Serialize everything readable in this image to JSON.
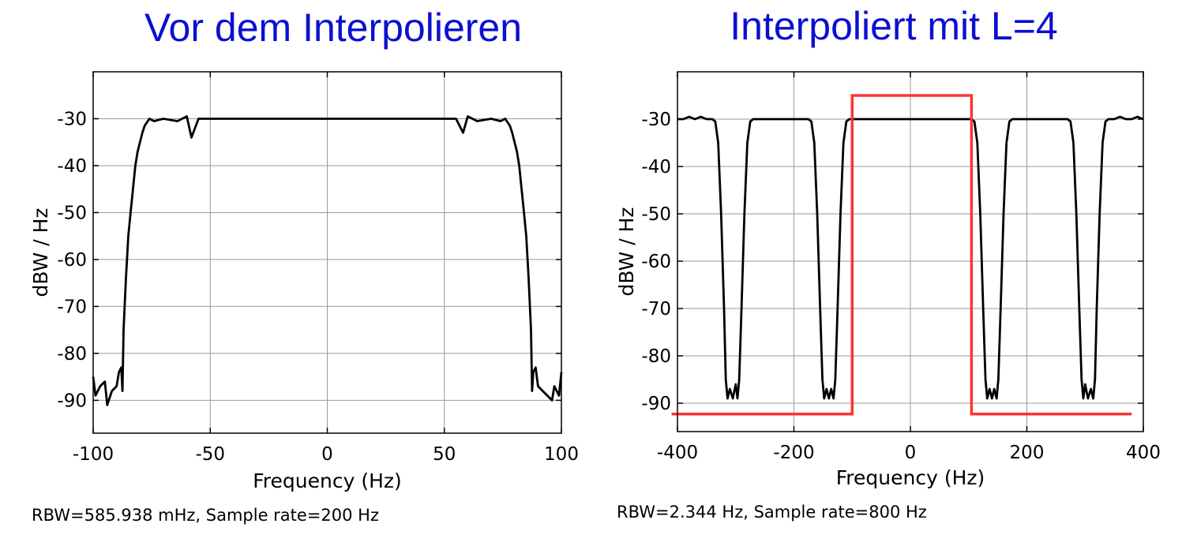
{
  "chart_data": [
    {
      "type": "line",
      "title": "Vor dem Interpolieren",
      "xlabel": "Frequency (Hz)",
      "ylabel": "dBW / Hz",
      "xlim": [
        -100,
        100
      ],
      "ylim": [
        -97,
        -20
      ],
      "xticks": [
        -100,
        -50,
        0,
        50,
        100
      ],
      "yticks": [
        -30,
        -40,
        -50,
        -60,
        -70,
        -80,
        -90
      ],
      "xtick_labels": [
        "-100",
        "-50",
        "0",
        "50",
        "100"
      ],
      "ytick_labels": [
        "-30",
        "-40",
        "-50",
        "-60",
        "-70",
        "-80",
        "-90"
      ],
      "grid": true,
      "footer": "RBW=585.938 mHz, Sample rate=200 Hz",
      "series": [
        {
          "color": "#000000",
          "points": [
            [
              -100,
              -85
            ],
            [
              -99,
              -89
            ],
            [
              -97,
              -87
            ],
            [
              -95,
              -86
            ],
            [
              -94,
              -91
            ],
            [
              -92,
              -88
            ],
            [
              -90,
              -87
            ],
            [
              -89,
              -84
            ],
            [
              -88,
              -83
            ],
            [
              -87.5,
              -88
            ],
            [
              -87,
              -75
            ],
            [
              -86,
              -64
            ],
            [
              -85,
              -55
            ],
            [
              -84,
              -50
            ],
            [
              -83,
              -45
            ],
            [
              -82,
              -40
            ],
            [
              -81,
              -37
            ],
            [
              -80,
              -35
            ],
            [
              -79,
              -33
            ],
            [
              -78,
              -31.5
            ],
            [
              -76,
              -30
            ],
            [
              -74,
              -30.5
            ],
            [
              -70,
              -30
            ],
            [
              -64,
              -30.5
            ],
            [
              -60,
              -29.5
            ],
            [
              -58,
              -34
            ],
            [
              -55,
              -30
            ],
            [
              -45,
              -30
            ],
            [
              -30,
              -30
            ],
            [
              -15,
              -30
            ],
            [
              0,
              -30
            ],
            [
              15,
              -30
            ],
            [
              30,
              -30
            ],
            [
              45,
              -30
            ],
            [
              55,
              -30
            ],
            [
              58,
              -33
            ],
            [
              60,
              -29.5
            ],
            [
              64,
              -30.5
            ],
            [
              70,
              -30
            ],
            [
              74,
              -30.5
            ],
            [
              76,
              -30
            ],
            [
              78,
              -31.5
            ],
            [
              79,
              -33
            ],
            [
              80,
              -35
            ],
            [
              81,
              -37
            ],
            [
              82,
              -40
            ],
            [
              83,
              -45
            ],
            [
              84,
              -50
            ],
            [
              85,
              -55
            ],
            [
              86,
              -64
            ],
            [
              87,
              -75
            ],
            [
              87.5,
              -88
            ],
            [
              88,
              -84
            ],
            [
              89,
              -83
            ],
            [
              90,
              -87
            ],
            [
              92,
              -88
            ],
            [
              94,
              -89
            ],
            [
              96,
              -90
            ],
            [
              97,
              -87
            ],
            [
              99,
              -89
            ],
            [
              100,
              -84
            ]
          ]
        }
      ]
    },
    {
      "type": "line",
      "title": "Interpoliert mit  L=4",
      "xlabel": "Frequency (Hz)",
      "ylabel": "dBW / Hz",
      "xlim": [
        -400,
        400
      ],
      "ylim": [
        -96,
        -20
      ],
      "xticks": [
        -400,
        -200,
        0,
        200,
        400
      ],
      "yticks": [
        -30,
        -40,
        -50,
        -60,
        -70,
        -80,
        -90
      ],
      "xtick_labels": [
        "-400",
        "-200",
        "0",
        "200",
        "400"
      ],
      "ytick_labels": [
        "-30",
        "-40",
        "-50",
        "-60",
        "-70",
        "-80",
        "-90"
      ],
      "grid": true,
      "footer": "RBW=2.344 Hz, Sample rate=800 Hz",
      "series": [
        {
          "color": "#000000",
          "points": [
            [
              -400,
              -30
            ],
            [
              -390,
              -30
            ],
            [
              -380,
              -29.5
            ],
            [
              -370,
              -30
            ],
            [
              -360,
              -29.5
            ],
            [
              -350,
              -30
            ],
            [
              -340,
              -30
            ],
            [
              -335,
              -30.5
            ],
            [
              -330,
              -35
            ],
            [
              -325,
              -50
            ],
            [
              -320,
              -70
            ],
            [
              -317,
              -85
            ],
            [
              -314,
              -89
            ],
            [
              -310,
              -87
            ],
            [
              -305,
              -89
            ],
            [
              -300,
              -86
            ],
            [
              -297,
              -89
            ],
            [
              -294,
              -85
            ],
            [
              -290,
              -70
            ],
            [
              -285,
              -50
            ],
            [
              -280,
              -35
            ],
            [
              -275,
              -30.5
            ],
            [
              -270,
              -30
            ],
            [
              -250,
              -30
            ],
            [
              -230,
              -30
            ],
            [
              -210,
              -30
            ],
            [
              -190,
              -30
            ],
            [
              -175,
              -30
            ],
            [
              -170,
              -30.5
            ],
            [
              -165,
              -35
            ],
            [
              -160,
              -50
            ],
            [
              -155,
              -70
            ],
            [
              -151,
              -85
            ],
            [
              -148,
              -89
            ],
            [
              -144,
              -87
            ],
            [
              -140,
              -89
            ],
            [
              -136,
              -87
            ],
            [
              -132,
              -89
            ],
            [
              -129,
              -85
            ],
            [
              -125,
              -70
            ],
            [
              -120,
              -50
            ],
            [
              -115,
              -35
            ],
            [
              -110,
              -30.5
            ],
            [
              -105,
              -30
            ],
            [
              -90,
              -30
            ],
            [
              -70,
              -30
            ],
            [
              -50,
              -30
            ],
            [
              -30,
              -30
            ],
            [
              -10,
              -30
            ],
            [
              10,
              -30
            ],
            [
              30,
              -30
            ],
            [
              50,
              -30
            ],
            [
              70,
              -30
            ],
            [
              90,
              -30
            ],
            [
              100,
              -30
            ],
            [
              105,
              -30
            ],
            [
              110,
              -30.5
            ],
            [
              115,
              -35
            ],
            [
              120,
              -50
            ],
            [
              125,
              -70
            ],
            [
              129,
              -85
            ],
            [
              132,
              -89
            ],
            [
              136,
              -87
            ],
            [
              140,
              -89
            ],
            [
              144,
              -87
            ],
            [
              148,
              -89
            ],
            [
              151,
              -85
            ],
            [
              155,
              -70
            ],
            [
              160,
              -50
            ],
            [
              165,
              -35
            ],
            [
              170,
              -30.5
            ],
            [
              175,
              -30
            ],
            [
              190,
              -30
            ],
            [
              210,
              -30
            ],
            [
              230,
              -30
            ],
            [
              250,
              -30
            ],
            [
              270,
              -30
            ],
            [
              275,
              -30.5
            ],
            [
              280,
              -35
            ],
            [
              285,
              -50
            ],
            [
              290,
              -70
            ],
            [
              294,
              -85
            ],
            [
              297,
              -89
            ],
            [
              300,
              -86
            ],
            [
              305,
              -89
            ],
            [
              310,
              -87
            ],
            [
              314,
              -89
            ],
            [
              317,
              -85
            ],
            [
              320,
              -70
            ],
            [
              325,
              -50
            ],
            [
              330,
              -35
            ],
            [
              335,
              -30.5
            ],
            [
              340,
              -30
            ],
            [
              350,
              -30
            ],
            [
              360,
              -29.5
            ],
            [
              370,
              -30
            ],
            [
              380,
              -30
            ],
            [
              390,
              -29.5
            ],
            [
              400,
              -30
            ]
          ]
        },
        {
          "color": "#ff3333",
          "points": [
            [
              -410,
              -92.3
            ],
            [
              -100,
              -92.3
            ],
            [
              -100,
              -25
            ],
            [
              105,
              -25
            ],
            [
              105,
              -92.3
            ],
            [
              380,
              -92.3
            ]
          ]
        }
      ]
    }
  ]
}
